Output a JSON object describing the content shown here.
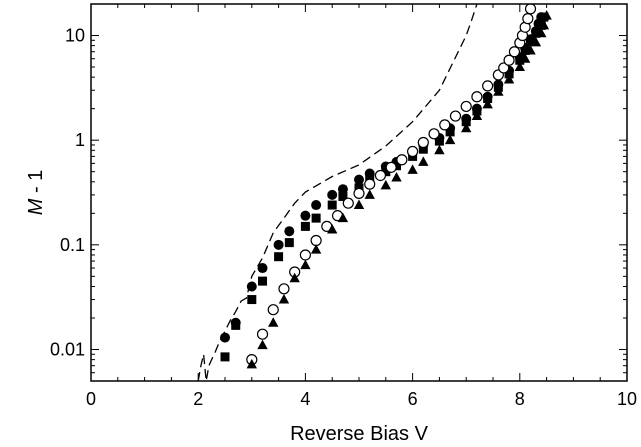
{
  "chart_data": {
    "type": "scatter",
    "title": "",
    "xlabel": "Reverse Bias V",
    "ylabel_italic": "M",
    "ylabel_rest": " - 1",
    "xlim": [
      0,
      10
    ],
    "ylim": [
      0.005,
      20
    ],
    "yscale": "log",
    "grid": false,
    "x_ticks": [
      "0",
      "2",
      "4",
      "6",
      "8",
      "10"
    ],
    "x_tick_values": [
      0,
      2,
      4,
      6,
      8,
      10
    ],
    "y_ticks": [
      "0.01",
      "0.1",
      "1",
      "10"
    ],
    "y_tick_values": [
      0.01,
      0.1,
      1,
      10
    ],
    "series": [
      {
        "marker": "dashed-line",
        "color": "#000000",
        "x": [
          2.0,
          2.05,
          2.1,
          2.15,
          2.2,
          2.25,
          2.3,
          2.4,
          2.5,
          2.6,
          2.7,
          2.8,
          2.9,
          3.0,
          3.2,
          3.4,
          3.6,
          3.8,
          4.0,
          4.5,
          5.0,
          5.5,
          6.0,
          6.5,
          7.0,
          7.1,
          7.2
        ],
        "y": [
          0.005,
          0.007,
          0.009,
          0.005,
          0.007,
          0.008,
          0.009,
          0.012,
          0.015,
          0.019,
          0.023,
          0.029,
          0.031,
          0.05,
          0.075,
          0.13,
          0.18,
          0.25,
          0.32,
          0.45,
          0.58,
          0.88,
          1.5,
          3.0,
          10.0,
          14.0,
          20.0
        ]
      },
      {
        "marker": "filled-circle",
        "color": "#000000",
        "x": [
          2.5,
          2.7,
          3.0,
          3.2,
          3.5,
          3.7,
          4.0,
          4.2,
          4.5,
          4.7,
          5.0,
          5.2,
          5.5,
          5.7,
          6.0,
          6.2,
          6.5,
          6.7,
          7.0,
          7.2,
          7.4,
          7.6,
          7.8,
          8.0,
          8.1,
          8.2,
          8.3,
          8.35,
          8.4
        ],
        "y": [
          0.013,
          0.018,
          0.04,
          0.06,
          0.1,
          0.135,
          0.19,
          0.24,
          0.3,
          0.34,
          0.42,
          0.48,
          0.56,
          0.62,
          0.78,
          0.9,
          1.05,
          1.3,
          1.6,
          2.0,
          2.6,
          3.4,
          4.6,
          6.2,
          7.6,
          9.2,
          11.0,
          13.0,
          15.0
        ]
      },
      {
        "marker": "filled-square",
        "color": "#000000",
        "x": [
          2.5,
          2.7,
          3.0,
          3.2,
          3.5,
          3.7,
          4.0,
          4.2,
          4.5,
          4.7,
          5.0,
          5.2,
          5.5,
          5.7,
          6.0,
          6.2,
          6.5,
          6.7,
          7.0,
          7.2,
          7.4,
          7.6,
          7.8,
          8.0,
          8.1,
          8.2,
          8.3,
          8.4,
          8.45
        ],
        "y": [
          0.0085,
          0.017,
          0.03,
          0.045,
          0.077,
          0.105,
          0.15,
          0.18,
          0.24,
          0.29,
          0.35,
          0.42,
          0.5,
          0.57,
          0.7,
          0.82,
          0.98,
          1.2,
          1.5,
          1.9,
          2.5,
          3.2,
          4.3,
          5.8,
          7.2,
          8.8,
          10.5,
          12.5,
          15.0
        ]
      },
      {
        "marker": "open-circle",
        "color": "#000000",
        "x": [
          3.0,
          3.2,
          3.4,
          3.6,
          3.8,
          4.0,
          4.2,
          4.4,
          4.6,
          4.8,
          5.0,
          5.2,
          5.4,
          5.6,
          5.8,
          6.0,
          6.2,
          6.4,
          6.6,
          6.8,
          7.0,
          7.2,
          7.4,
          7.6,
          7.7,
          7.8,
          7.9,
          8.0,
          8.05,
          8.1,
          8.15,
          8.2
        ],
        "y": [
          0.008,
          0.014,
          0.024,
          0.038,
          0.055,
          0.08,
          0.11,
          0.15,
          0.19,
          0.25,
          0.31,
          0.38,
          0.46,
          0.55,
          0.65,
          0.78,
          0.95,
          1.15,
          1.4,
          1.7,
          2.1,
          2.6,
          3.3,
          4.2,
          4.9,
          5.8,
          7.0,
          8.5,
          10.0,
          12.0,
          14.5,
          18.0
        ]
      },
      {
        "marker": "filled-triangle",
        "color": "#000000",
        "x": [
          3.0,
          3.2,
          3.4,
          3.6,
          3.8,
          4.0,
          4.2,
          4.5,
          4.7,
          5.0,
          5.2,
          5.5,
          5.7,
          6.0,
          6.2,
          6.5,
          6.7,
          7.0,
          7.2,
          7.4,
          7.6,
          7.8,
          8.0,
          8.1,
          8.2,
          8.3,
          8.4,
          8.45,
          8.5
        ],
        "y": [
          0.0072,
          0.011,
          0.018,
          0.03,
          0.048,
          0.064,
          0.09,
          0.14,
          0.18,
          0.24,
          0.3,
          0.37,
          0.44,
          0.52,
          0.62,
          0.8,
          1.0,
          1.3,
          1.7,
          2.2,
          2.9,
          3.8,
          5.0,
          6.0,
          7.2,
          8.6,
          10.5,
          12.5,
          15.5
        ]
      }
    ]
  }
}
